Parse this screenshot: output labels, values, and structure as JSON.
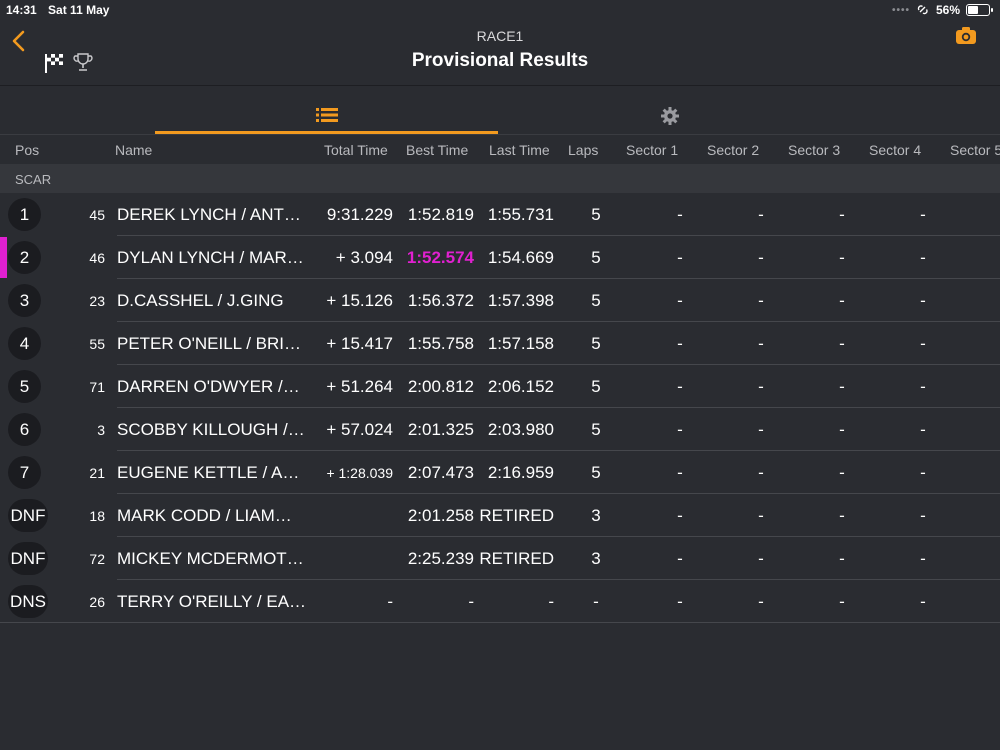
{
  "status": {
    "time": "14:31",
    "date": "Sat 11 May",
    "battery": "56%",
    "battery_level": 0.56
  },
  "header": {
    "subtitle": "RACE1",
    "title": "Provisional Results"
  },
  "columns": [
    "Pos",
    "Name",
    "Total Time",
    "Best Time",
    "Last Time",
    "Laps",
    "Sector 1",
    "Sector 2",
    "Sector 3",
    "Sector 4",
    "Sector 5"
  ],
  "class_label": "SCAR",
  "colors": {
    "accent": "#f29a1f",
    "highlight": "#e020d0",
    "background": "#2a2c31"
  },
  "rows": [
    {
      "pos": "1",
      "num": "45",
      "name": "DEREK LYNCH / ANT…",
      "total": "9:31.229",
      "best": "1:52.819",
      "last": "1:55.731",
      "laps": "5",
      "s1": "-",
      "s2": "-",
      "s3": "-",
      "s4": "-"
    },
    {
      "pos": "2",
      "num": "46",
      "name": "DYLAN LYNCH / MAR…",
      "total": "+ 3.094",
      "best": "1:52.574",
      "last": "1:54.669",
      "laps": "5",
      "s1": "-",
      "s2": "-",
      "s3": "-",
      "s4": "-"
    },
    {
      "pos": "3",
      "num": "23",
      "name": "D.CASSHEL /  J.GING",
      "total": "+ 15.126",
      "best": "1:56.372",
      "last": "1:57.398",
      "laps": "5",
      "s1": "-",
      "s2": "-",
      "s3": "-",
      "s4": "-"
    },
    {
      "pos": "4",
      "num": "55",
      "name": "PETER O'NEILL / BRI…",
      "total": "+ 15.417",
      "best": "1:55.758",
      "last": "1:57.158",
      "laps": "5",
      "s1": "-",
      "s2": "-",
      "s3": "-",
      "s4": "-"
    },
    {
      "pos": "5",
      "num": "71",
      "name": "DARREN O'DWYER /…",
      "total": "+ 51.264",
      "best": "2:00.812",
      "last": "2:06.152",
      "laps": "5",
      "s1": "-",
      "s2": "-",
      "s3": "-",
      "s4": "-"
    },
    {
      "pos": "6",
      "num": "3",
      "name": "SCOBBY KILLOUGH /…",
      "total": "+ 57.024",
      "best": "2:01.325",
      "last": "2:03.980",
      "laps": "5",
      "s1": "-",
      "s2": "-",
      "s3": "-",
      "s4": "-"
    },
    {
      "pos": "7",
      "num": "21",
      "name": "EUGENE KETTLE / A…",
      "total": "+ 1:28.039",
      "best": "2:07.473",
      "last": "2:16.959",
      "laps": "5",
      "s1": "-",
      "s2": "-",
      "s3": "-",
      "s4": "-"
    },
    {
      "pos": "DNF",
      "num": "18",
      "name": "MARK CODD / LIAM…",
      "total": "",
      "best": "2:01.258",
      "last": "RETIRED",
      "laps": "3",
      "s1": "-",
      "s2": "-",
      "s3": "-",
      "s4": "-"
    },
    {
      "pos": "DNF",
      "num": "72",
      "name": "MICKEY MCDERMOT…",
      "total": "",
      "best": "2:25.239",
      "last": "RETIRED",
      "laps": "3",
      "s1": "-",
      "s2": "-",
      "s3": "-",
      "s4": "-"
    },
    {
      "pos": "DNS",
      "num": "26",
      "name": "TERRY O'REILLY / EA…",
      "total": "-",
      "best": "-",
      "last": "-",
      "laps": "-",
      "s1": "-",
      "s2": "-",
      "s3": "-",
      "s4": "-"
    }
  ]
}
